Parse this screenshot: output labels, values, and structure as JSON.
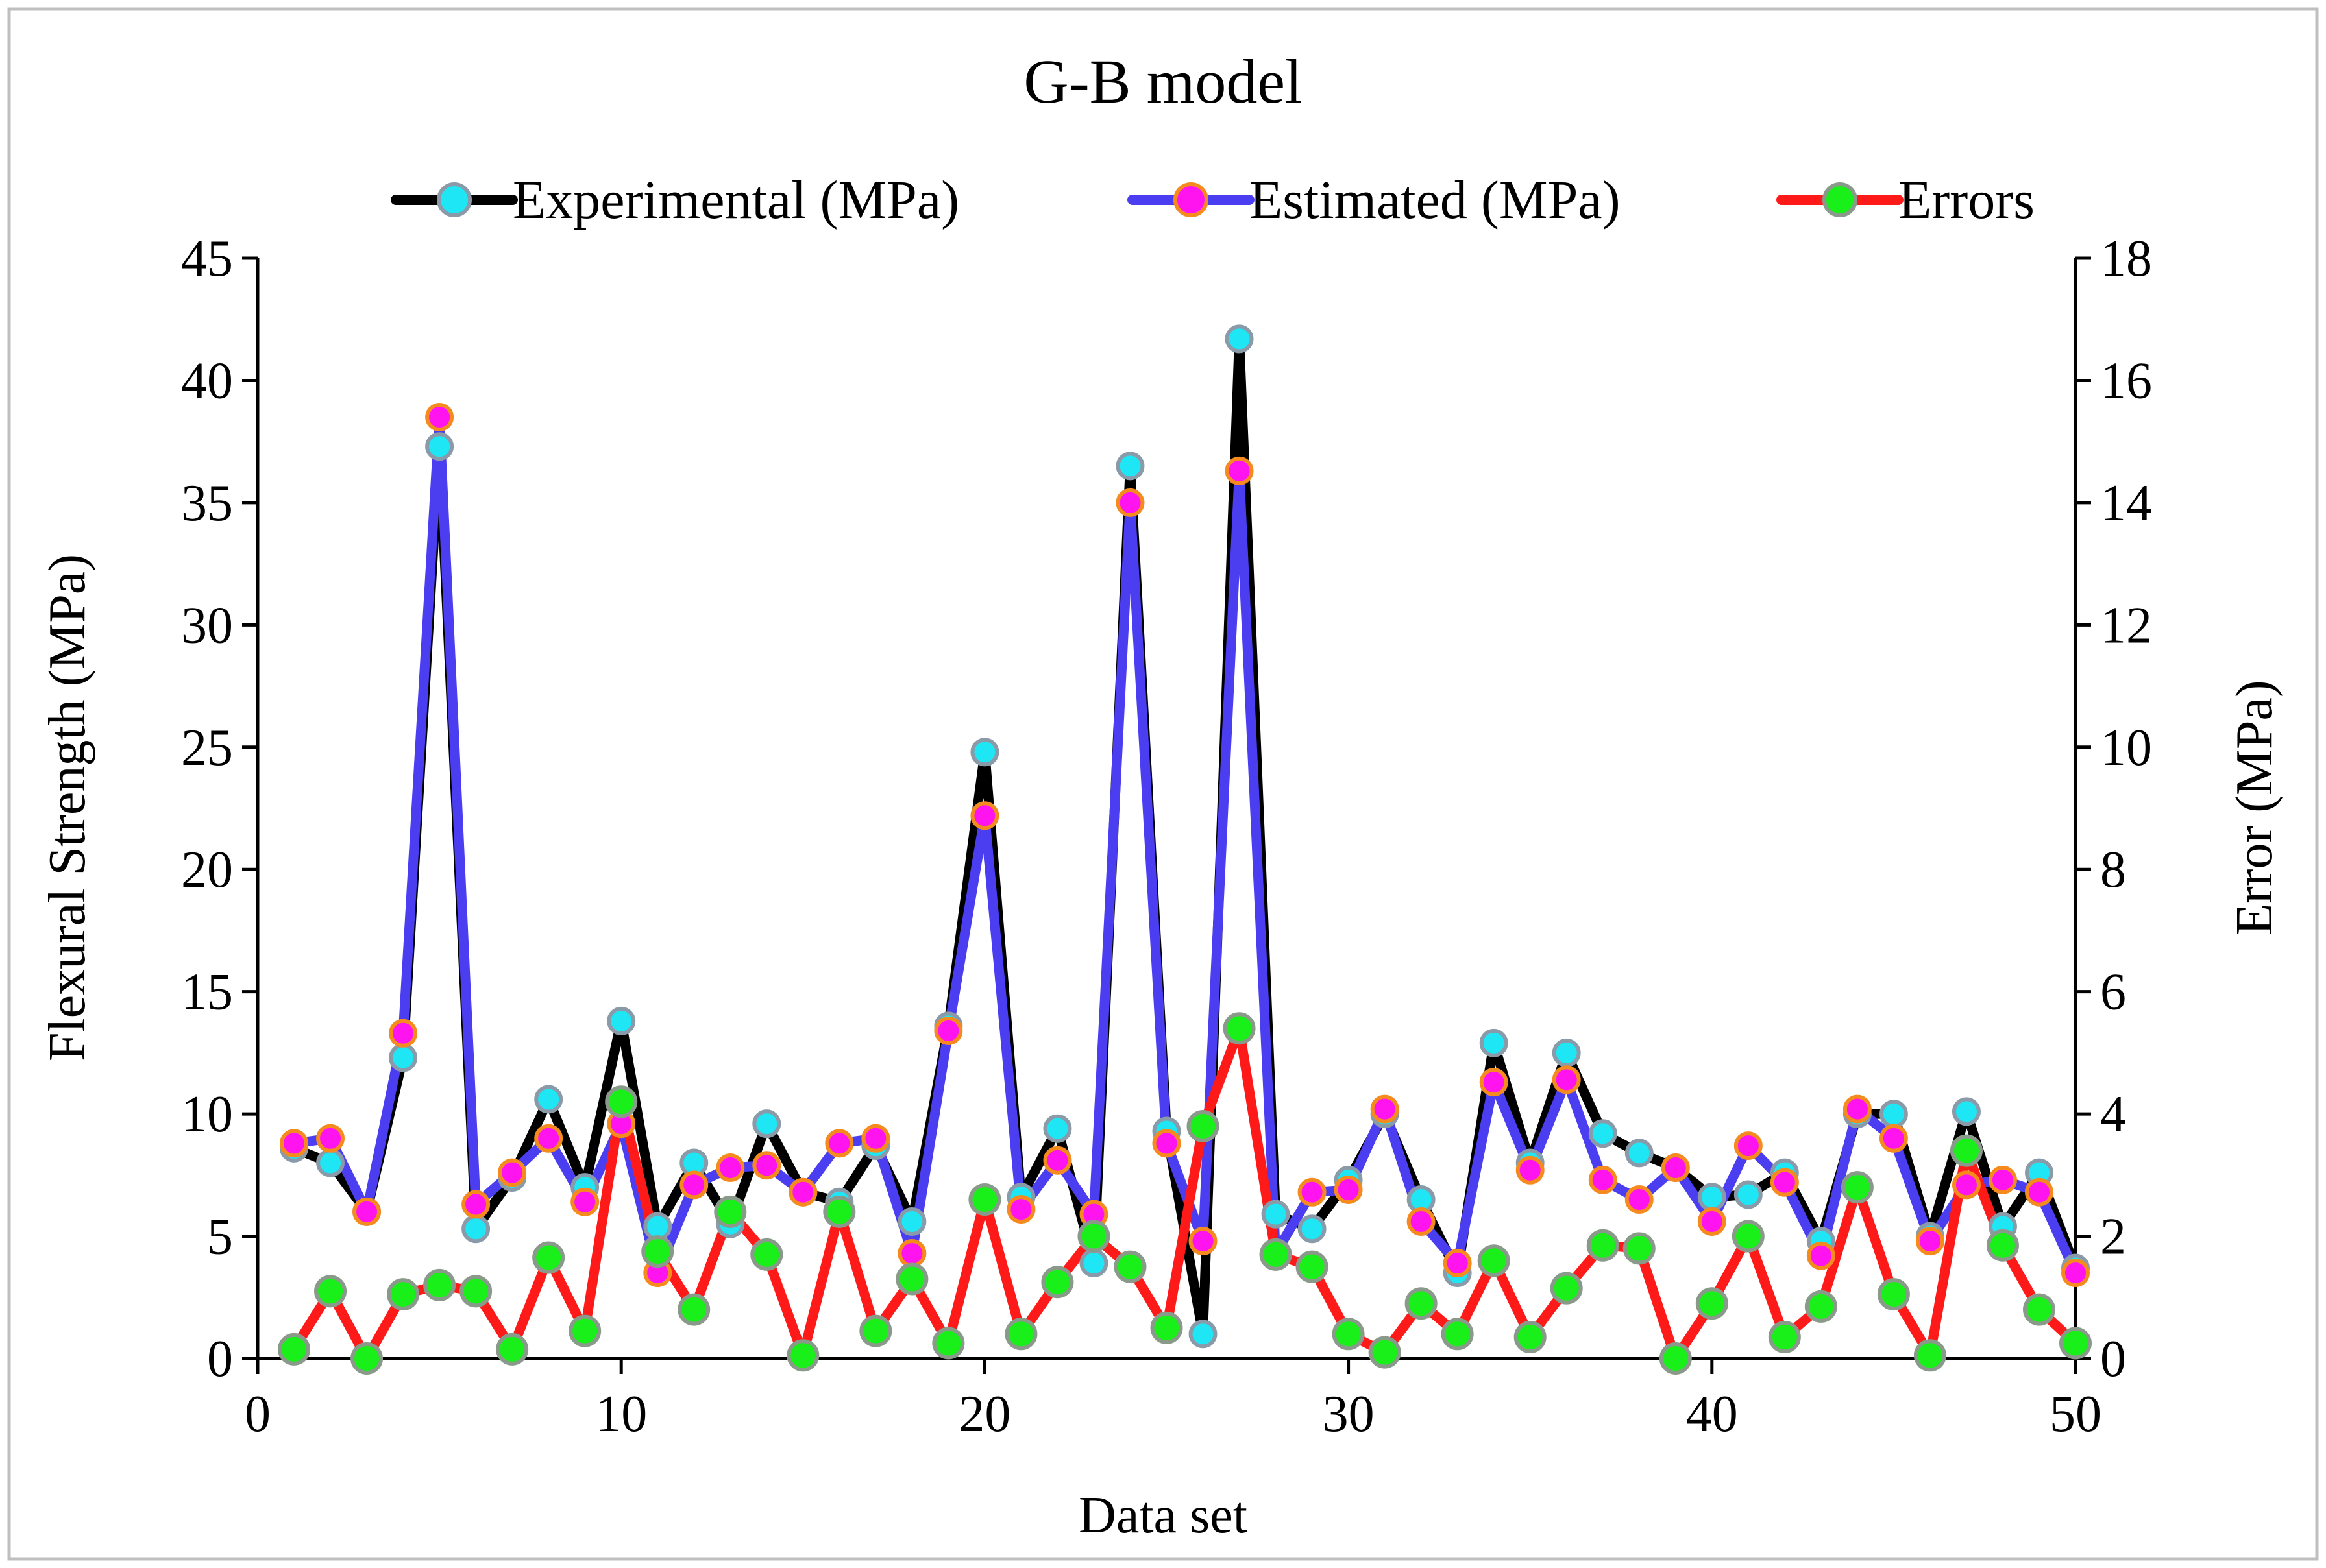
{
  "chart_data": {
    "type": "line",
    "title": "G-B model",
    "xlabel": "Data set",
    "ylabel": "Flexural Strength (MPa)",
    "y2label": "Error (MPa)",
    "xlim": [
      0,
      50
    ],
    "ylim": [
      0,
      45
    ],
    "y2lim": [
      0,
      18
    ],
    "xticks": [
      0,
      10,
      20,
      30,
      40,
      50
    ],
    "yticks": [
      0,
      5,
      10,
      15,
      20,
      25,
      30,
      35,
      40,
      45
    ],
    "y2ticks": [
      0,
      2,
      4,
      6,
      8,
      10,
      12,
      14,
      16,
      18
    ],
    "legend_position": "top",
    "grid": false,
    "x": [
      1,
      2,
      3,
      4,
      5,
      6,
      7,
      8,
      9,
      10,
      11,
      12,
      13,
      14,
      15,
      16,
      17,
      18,
      19,
      20,
      21,
      22,
      23,
      24,
      25,
      26,
      27,
      28,
      29,
      30,
      31,
      32,
      33,
      34,
      35,
      36,
      37,
      38,
      39,
      40,
      41,
      42,
      43,
      44,
      45,
      46,
      47,
      48,
      49,
      50
    ],
    "series": [
      {
        "name": "Experimental (MPa)",
        "axis": "left",
        "line_color": "#000000",
        "marker_fill": "#1ee6f5",
        "marker_edge": "#8a9aa8",
        "values": [
          8.6,
          8.0,
          6.0,
          12.3,
          37.3,
          5.3,
          7.4,
          10.6,
          7.0,
          13.8,
          5.4,
          8.0,
          5.5,
          9.6,
          6.8,
          6.4,
          8.7,
          5.6,
          13.6,
          24.8,
          6.6,
          9.4,
          3.9,
          36.5,
          9.3,
          1.0,
          41.7,
          5.9,
          5.3,
          7.3,
          10.0,
          6.5,
          3.5,
          12.9,
          8.0,
          12.5,
          9.2,
          8.4,
          7.8,
          6.6,
          6.7,
          7.6,
          4.8,
          10.0,
          10.0,
          5.0,
          10.1,
          5.4,
          7.6,
          3.7
        ]
      },
      {
        "name": "Estimated (MPa)",
        "axis": "left",
        "line_color": "#4b3df0",
        "marker_fill": "#ff14f0",
        "marker_edge": "#f58a1e",
        "values": [
          8.8,
          9.0,
          6.0,
          13.3,
          38.5,
          6.3,
          7.6,
          9.0,
          6.4,
          9.6,
          3.5,
          7.1,
          7.8,
          7.9,
          6.8,
          8.8,
          9.0,
          4.3,
          13.4,
          22.2,
          6.1,
          8.1,
          5.9,
          35.0,
          8.8,
          4.8,
          36.3,
          4.3,
          6.8,
          6.9,
          10.2,
          5.6,
          3.9,
          11.3,
          7.7,
          11.4,
          7.3,
          6.5,
          7.8,
          5.6,
          8.7,
          7.2,
          4.2,
          10.2,
          9.0,
          4.8,
          7.1,
          7.3,
          6.8,
          3.5
        ]
      },
      {
        "name": "Errors",
        "axis": "right",
        "line_color": "#ff1a1a",
        "marker_fill": "#19f019",
        "marker_edge": "#8a9a8a",
        "values": [
          0.15,
          1.1,
          0.0,
          1.05,
          1.2,
          1.1,
          0.15,
          1.65,
          0.45,
          4.2,
          1.75,
          0.8,
          2.4,
          1.7,
          0.05,
          2.4,
          0.45,
          1.3,
          0.25,
          2.6,
          0.4,
          1.25,
          2.0,
          1.5,
          0.5,
          3.8,
          5.4,
          1.7,
          1.5,
          0.4,
          0.1,
          0.9,
          0.4,
          1.6,
          0.35,
          1.15,
          1.85,
          1.8,
          0.0,
          0.9,
          2.0,
          0.35,
          0.85,
          2.8,
          1.05,
          0.05,
          3.4,
          1.85,
          0.8,
          0.25
        ]
      }
    ]
  }
}
